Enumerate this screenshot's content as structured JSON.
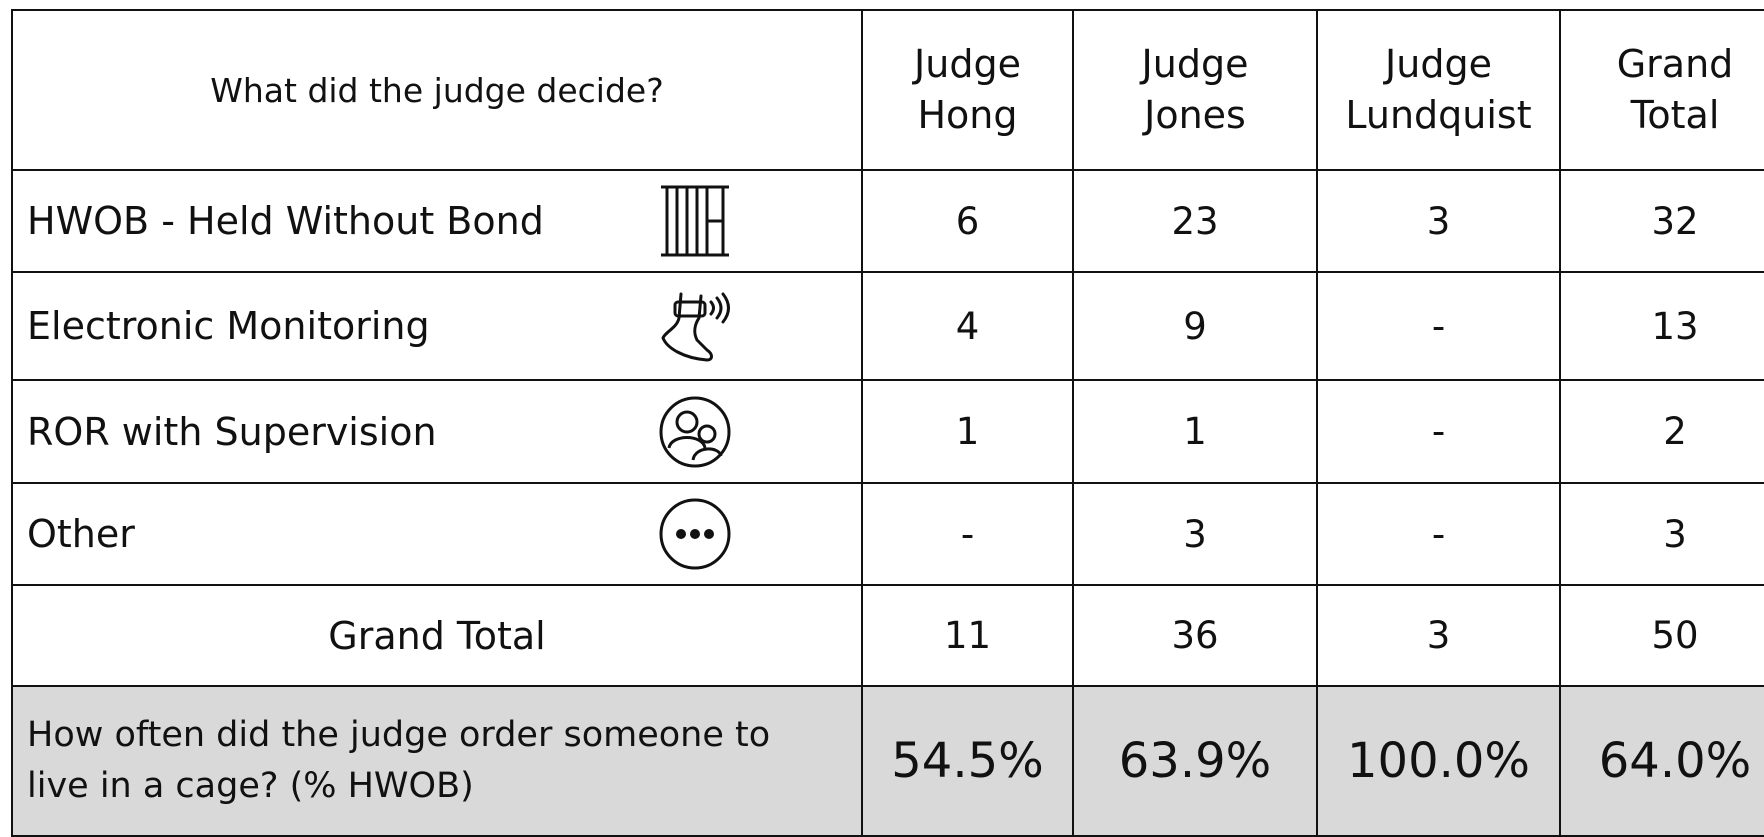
{
  "header": {
    "question": "What did the judge decide?",
    "columns": [
      "Judge Hong",
      "Judge Jones",
      "Judge Lundquist",
      "Grand Total"
    ]
  },
  "rows": [
    {
      "label": "HWOB - Held Without Bond",
      "values": [
        6,
        23,
        3,
        32
      ]
    },
    {
      "label": "Electronic Monitoring",
      "values": [
        4,
        9,
        "-",
        13
      ]
    },
    {
      "label": "ROR with Supervision",
      "values": [
        1,
        1,
        "-",
        2
      ]
    },
    {
      "label": "Other",
      "values": [
        "-",
        3,
        "-",
        3
      ]
    }
  ],
  "total": {
    "label": "Grand Total",
    "values": [
      11,
      36,
      3,
      50
    ]
  },
  "footer": {
    "label": "How often did the judge order someone to live in a cage? (% HWOB)",
    "values": [
      "54.5%",
      "63.9%",
      "100.0%",
      "64.0%"
    ]
  }
}
